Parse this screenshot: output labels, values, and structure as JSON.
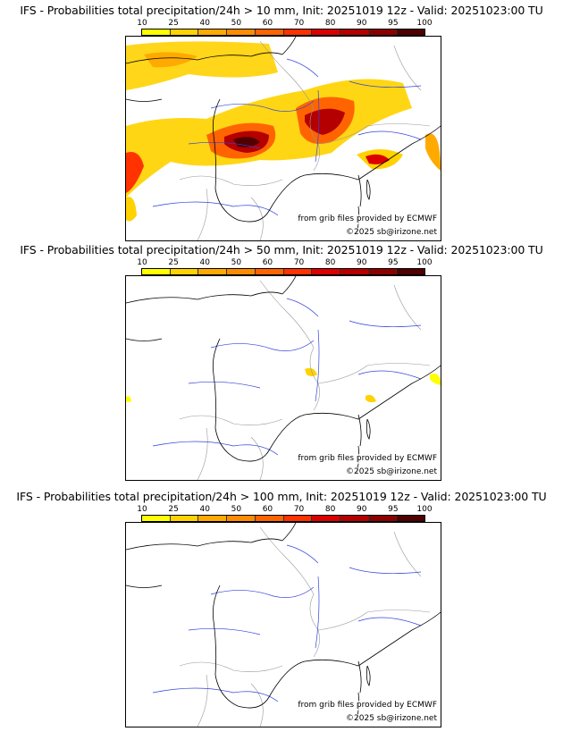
{
  "colors": {
    "scale": [
      "#ffff00",
      "#ffd200",
      "#ffaa00",
      "#ff8c00",
      "#ff6400",
      "#ff3200",
      "#dc0000",
      "#b40000",
      "#8c0000",
      "#500000"
    ],
    "coast": "#000000",
    "rivers": "#3344dd",
    "borders": "#999999"
  },
  "scale_labels": [
    "10",
    "25",
    "40",
    "50",
    "60",
    "70",
    "80",
    "90",
    "95",
    "100"
  ],
  "panels": [
    {
      "title": "IFS - Probabilities total precipitation/24h > 10 mm, Init: 20251019 12z - Valid: 20251023:00 TU",
      "source": "from grib files provided by ECMWF",
      "copyright": "©2025 sb@irizone.net",
      "probability_level": "high"
    },
    {
      "title": "IFS - Probabilities total precipitation/24h > 50 mm, Init: 20251019 12z - Valid: 20251023:00 TU",
      "source": "from grib files provided by ECMWF",
      "copyright": "©2025 sb@irizone.net",
      "probability_level": "low"
    },
    {
      "title": "IFS - Probabilities total precipitation/24h > 100 mm, Init: 20251019 12z - Valid: 20251023:00 TU",
      "source": "from grib files provided by ECMWF",
      "copyright": "©2025 sb@irizone.net",
      "probability_level": "none"
    }
  ]
}
